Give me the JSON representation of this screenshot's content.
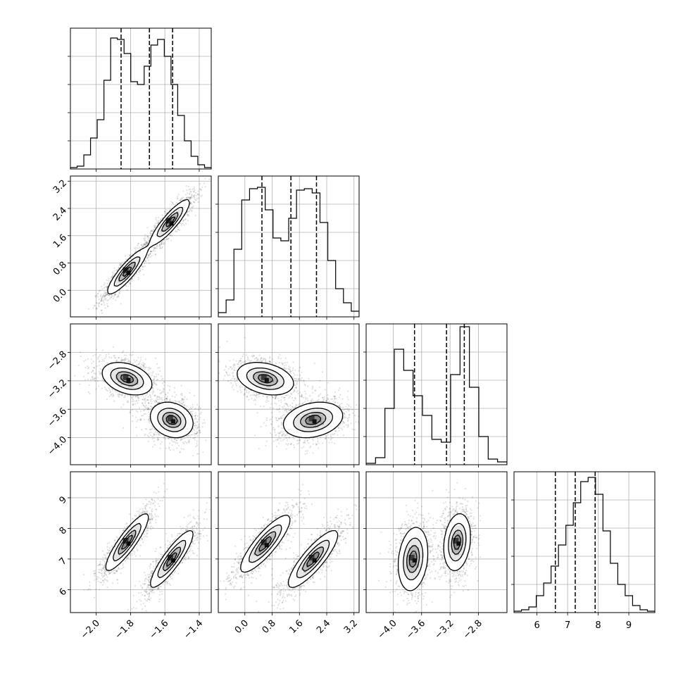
{
  "chart_data": {
    "type": "corner",
    "title": "",
    "params": [
      {
        "index": 0,
        "label": "",
        "range": [
          -2.15,
          -1.33
        ],
        "ticks": [
          -2.0,
          -1.8,
          -1.6,
          -1.4
        ],
        "tick_labels": [
          "−2.0",
          "−1.8",
          "−1.6",
          "−1.4"
        ],
        "quantiles": [
          -1.855,
          -1.69,
          -1.555
        ]
      },
      {
        "index": 1,
        "label": "",
        "range": [
          -0.78,
          3.35
        ],
        "ticks": [
          0.0,
          0.8,
          1.6,
          2.4,
          3.2
        ],
        "tick_labels": [
          "0.0",
          "0.8",
          "1.6",
          "2.4",
          "3.2"
        ],
        "quantiles": [
          0.5,
          1.35,
          2.1
        ]
      },
      {
        "index": 2,
        "label": "",
        "range": [
          -4.38,
          -2.4
        ],
        "ticks": [
          -4.0,
          -3.6,
          -3.2,
          -2.8
        ],
        "tick_labels": [
          "−4.0",
          "−3.6",
          "−3.2",
          "−2.8"
        ],
        "quantiles": [
          -3.7,
          -3.25,
          -3.0
        ]
      },
      {
        "index": 3,
        "label": "",
        "range": [
          5.25,
          9.85
        ],
        "ticks": [
          6,
          7,
          8,
          9
        ],
        "tick_labels": [
          "6",
          "7",
          "8",
          "9"
        ],
        "quantiles": [
          6.6,
          7.25,
          7.9
        ]
      }
    ],
    "histograms": [
      {
        "param": 0,
        "ymax": 1.0,
        "ygrid": [
          0.2,
          0.4,
          0.6,
          0.8
        ],
        "counts": [
          0.01,
          0.02,
          0.1,
          0.22,
          0.35,
          0.63,
          0.93,
          0.92,
          0.82,
          0.62,
          0.6,
          0.73,
          0.88,
          0.92,
          0.8,
          0.6,
          0.38,
          0.2,
          0.09,
          0.03,
          0.01
        ]
      },
      {
        "param": 1,
        "ymax": 1.0,
        "ygrid": [
          0.2,
          0.4,
          0.6,
          0.8
        ],
        "counts": [
          0.03,
          0.12,
          0.48,
          0.83,
          0.91,
          0.92,
          0.76,
          0.56,
          0.54,
          0.7,
          0.9,
          0.91,
          0.88,
          0.67,
          0.4,
          0.2,
          0.1,
          0.04
        ]
      },
      {
        "param": 2,
        "ymax": 1.0,
        "ygrid": [
          0.2,
          0.4,
          0.6,
          0.8
        ],
        "counts": [
          0.01,
          0.05,
          0.4,
          0.82,
          0.67,
          0.49,
          0.35,
          0.18,
          0.16,
          0.64,
          0.98,
          0.55,
          0.2,
          0.04,
          0.02
        ]
      },
      {
        "param": 3,
        "ymax": 1.0,
        "ygrid": [
          0.2,
          0.4,
          0.6,
          0.8
        ],
        "counts": [
          0.01,
          0.02,
          0.04,
          0.12,
          0.21,
          0.33,
          0.48,
          0.62,
          0.78,
          0.93,
          0.96,
          0.84,
          0.58,
          0.35,
          0.2,
          0.12,
          0.05,
          0.02,
          0.01
        ]
      }
    ],
    "joint": [
      {
        "xparam": 0,
        "yparam": 1,
        "components": [
          {
            "mean": [
              -1.82,
              0.55
            ],
            "sd": [
              0.055,
              0.32
            ],
            "rho": 0.88,
            "weight": 0.5
          },
          {
            "mean": [
              -1.57,
              2.0
            ],
            "sd": [
              0.055,
              0.32
            ],
            "rho": 0.88,
            "weight": 0.5
          }
        ]
      },
      {
        "xparam": 0,
        "yparam": 2,
        "components": [
          {
            "mean": [
              -1.82,
              -3.17
            ],
            "sd": [
              0.07,
              0.11
            ],
            "rho": -0.35,
            "weight": 0.5
          },
          {
            "mean": [
              -1.56,
              -3.75
            ],
            "sd": [
              0.06,
              0.12
            ],
            "rho": -0.2,
            "weight": 0.5
          }
        ]
      },
      {
        "xparam": 0,
        "yparam": 3,
        "components": [
          {
            "mean": [
              -1.82,
              7.55
            ],
            "sd": [
              0.06,
              0.45
            ],
            "rho": 0.88,
            "weight": 0.5
          },
          {
            "mean": [
              -1.56,
              7.0
            ],
            "sd": [
              0.06,
              0.45
            ],
            "rho": 0.88,
            "weight": 0.5
          }
        ]
      },
      {
        "xparam": 1,
        "yparam": 2,
        "components": [
          {
            "mean": [
              0.6,
              -3.17
            ],
            "sd": [
              0.4,
              0.11
            ],
            "rho": -0.3,
            "weight": 0.5
          },
          {
            "mean": [
              2.0,
              -3.75
            ],
            "sd": [
              0.42,
              0.12
            ],
            "rho": 0.25,
            "weight": 0.5
          }
        ]
      },
      {
        "xparam": 1,
        "yparam": 3,
        "components": [
          {
            "mean": [
              0.6,
              7.5
            ],
            "sd": [
              0.35,
              0.45
            ],
            "rho": 0.85,
            "weight": 0.5
          },
          {
            "mean": [
              2.0,
              7.0
            ],
            "sd": [
              0.35,
              0.45
            ],
            "rho": 0.85,
            "weight": 0.5
          }
        ]
      },
      {
        "xparam": 2,
        "yparam": 3,
        "components": [
          {
            "mean": [
              -3.72,
              7.0
            ],
            "sd": [
              0.1,
              0.5
            ],
            "rho": 0.2,
            "weight": 0.5
          },
          {
            "mean": [
              -3.1,
              7.55
            ],
            "sd": [
              0.09,
              0.45
            ],
            "rho": 0.2,
            "weight": 0.5
          }
        ]
      }
    ],
    "contour_levels": [
      0.118,
      0.393,
      0.675,
      0.865
    ],
    "grid": true,
    "legend": ""
  }
}
